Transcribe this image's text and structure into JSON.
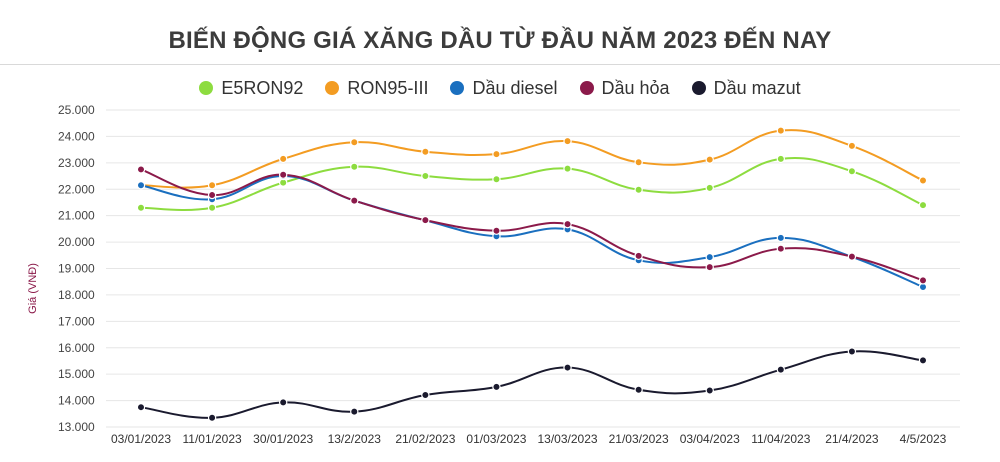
{
  "chart_data": {
    "type": "line",
    "title": "BIẾN ĐỘNG GIÁ XĂNG DẦU TỪ ĐẦU NĂM 2023 ĐẾN NAY",
    "xlabel": "",
    "ylabel": "Giá (VNĐ)",
    "ylim": [
      13000,
      25000
    ],
    "yticks": [
      "13.000",
      "14.000",
      "15.000",
      "16.000",
      "17.000",
      "18.000",
      "19.000",
      "20.000",
      "21.000",
      "22.000",
      "23.000",
      "24.000",
      "25.000"
    ],
    "categories": [
      "03/01/2023",
      "11/01/2023",
      "30/01/2023",
      "13/2/2023",
      "21/02/2023",
      "01/03/2023",
      "13/03/2023",
      "21/03/2023",
      "03/04/2023",
      "11/04/2023",
      "21/4/2023",
      "4/5/2023"
    ],
    "grid": true,
    "legend_position": "top",
    "series": [
      {
        "name": "E5RON92",
        "color": "#8ddc3f",
        "values": [
          21300,
          21300,
          22250,
          22850,
          22500,
          22380,
          22780,
          21980,
          22050,
          23150,
          22680,
          21400
        ]
      },
      {
        "name": "RON95-III",
        "color": "#f39c22",
        "values": [
          22150,
          22150,
          23150,
          23780,
          23420,
          23330,
          23820,
          23020,
          23120,
          24220,
          23640,
          22330
        ]
      },
      {
        "name": "Dầu diesel",
        "color": "#1a6fbf",
        "values": [
          22150,
          21620,
          22500,
          21570,
          20820,
          20220,
          20480,
          19310,
          19430,
          20160,
          19440,
          18300
        ]
      },
      {
        "name": "Dầu hỏa",
        "color": "#8b1a4a",
        "values": [
          22750,
          21780,
          22550,
          21570,
          20830,
          20430,
          20680,
          19480,
          19050,
          19750,
          19450,
          18550
        ]
      },
      {
        "name": "Dầu mazut",
        "color": "#1a1a2e",
        "values": [
          13750,
          13350,
          13930,
          13580,
          14210,
          14520,
          15250,
          14410,
          14380,
          15170,
          15860,
          15520
        ]
      }
    ]
  }
}
